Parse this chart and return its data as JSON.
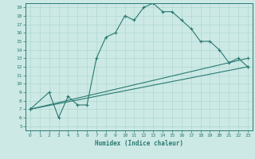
{
  "title": "",
  "xlabel": "Humidex (Indice chaleur)",
  "bg_color": "#cce9e5",
  "line_color": "#2a7a72",
  "grid_color": "#b0d8d2",
  "xlim": [
    -0.5,
    23.5
  ],
  "ylim": [
    4.5,
    19.5
  ],
  "xticks": [
    0,
    1,
    2,
    3,
    4,
    5,
    6,
    7,
    8,
    9,
    10,
    11,
    12,
    13,
    14,
    15,
    16,
    17,
    18,
    19,
    20,
    21,
    22,
    23
  ],
  "yticks": [
    5,
    6,
    7,
    8,
    9,
    10,
    11,
    12,
    13,
    14,
    15,
    16,
    17,
    18,
    19
  ],
  "line1_x": [
    0,
    2,
    3,
    4,
    5,
    6,
    7,
    8,
    9,
    10,
    11,
    12,
    13,
    14,
    15,
    16,
    17,
    18,
    19,
    20,
    21,
    22,
    23
  ],
  "line1_y": [
    7,
    9,
    6,
    8.5,
    7.5,
    7.5,
    13,
    15.5,
    16,
    18,
    17.5,
    19,
    19.5,
    18.5,
    18.5,
    17.5,
    16.5,
    15,
    15,
    14,
    12.5,
    13,
    12
  ],
  "line2_x": [
    0,
    23
  ],
  "line2_y": [
    7,
    13
  ],
  "line3_x": [
    0,
    23
  ],
  "line3_y": [
    7,
    12
  ]
}
